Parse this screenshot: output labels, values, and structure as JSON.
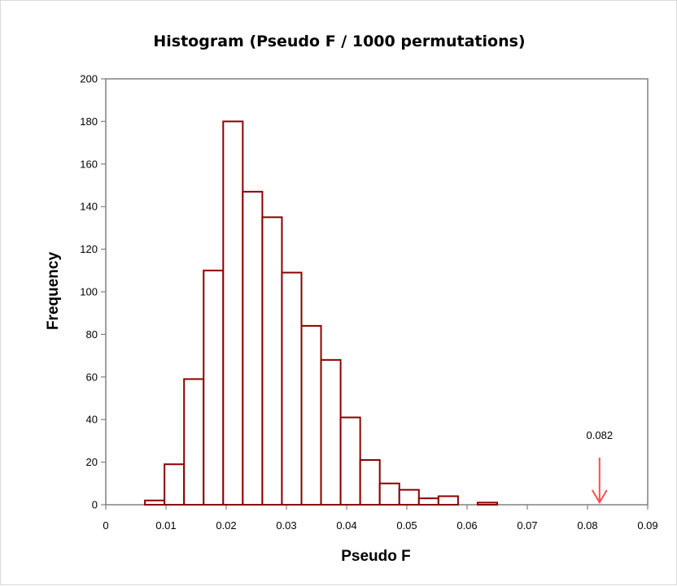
{
  "chart_data": {
    "type": "bar",
    "title": "Histogram (Pseudo F / 1000 permutations)",
    "xlabel": "Pseudo F",
    "ylabel": "Frequency",
    "xlim": [
      0,
      0.09
    ],
    "ylim": [
      0,
      200
    ],
    "x_ticks": [
      "0",
      "0.01",
      "0.02",
      "0.03",
      "0.04",
      "0.05",
      "0.06",
      "0.07",
      "0.08",
      "0.09"
    ],
    "y_ticks": [
      "0",
      "20",
      "40",
      "60",
      "80",
      "100",
      "120",
      "140",
      "160",
      "180",
      "200"
    ],
    "bins": [
      {
        "x0": 0.0,
        "x1": 0.00325,
        "count": 0
      },
      {
        "x0": 0.00325,
        "x1": 0.0065,
        "count": 0
      },
      {
        "x0": 0.0065,
        "x1": 0.00975,
        "count": 2
      },
      {
        "x0": 0.00975,
        "x1": 0.013,
        "count": 19
      },
      {
        "x0": 0.013,
        "x1": 0.01625,
        "count": 59
      },
      {
        "x0": 0.01625,
        "x1": 0.0195,
        "count": 110
      },
      {
        "x0": 0.0195,
        "x1": 0.02275,
        "count": 180
      },
      {
        "x0": 0.02275,
        "x1": 0.026,
        "count": 147
      },
      {
        "x0": 0.026,
        "x1": 0.02925,
        "count": 135
      },
      {
        "x0": 0.02925,
        "x1": 0.0325,
        "count": 109
      },
      {
        "x0": 0.0325,
        "x1": 0.03575,
        "count": 84
      },
      {
        "x0": 0.03575,
        "x1": 0.039,
        "count": 68
      },
      {
        "x0": 0.039,
        "x1": 0.04225,
        "count": 41
      },
      {
        "x0": 0.04225,
        "x1": 0.0455,
        "count": 21
      },
      {
        "x0": 0.0455,
        "x1": 0.04875,
        "count": 10
      },
      {
        "x0": 0.04875,
        "x1": 0.052,
        "count": 7
      },
      {
        "x0": 0.052,
        "x1": 0.05525,
        "count": 3
      },
      {
        "x0": 0.05525,
        "x1": 0.0585,
        "count": 4
      },
      {
        "x0": 0.0585,
        "x1": 0.06175,
        "count": 0
      },
      {
        "x0": 0.06175,
        "x1": 0.065,
        "count": 1
      }
    ],
    "annotation": {
      "label": "0.082",
      "x": 0.082
    },
    "colors": {
      "bar_edge": "#8b0000",
      "bar_fill": "#ffffff",
      "arrow": "#ff4d4d",
      "axis": "#808080"
    },
    "grid": false,
    "legend": "none"
  }
}
